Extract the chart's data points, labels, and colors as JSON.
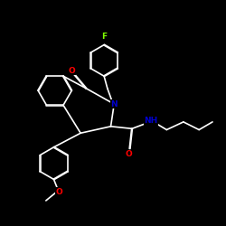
{
  "background_color": "#000000",
  "bond_color": "#ffffff",
  "atom_colors": {
    "F": "#7fff00",
    "O": "#ff0000",
    "N": "#0000cd",
    "C": "#ffffff"
  },
  "figsize": [
    2.5,
    2.5
  ],
  "dpi": 100
}
